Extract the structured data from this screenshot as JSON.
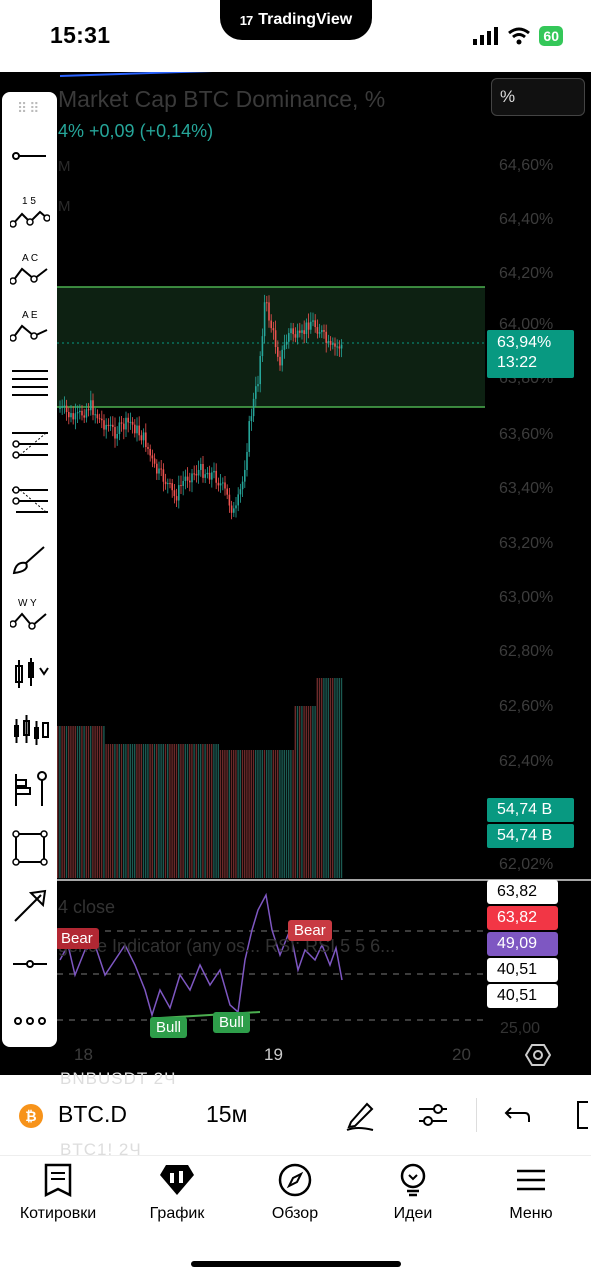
{
  "status_bar": {
    "time": "15:31",
    "battery": "60",
    "dynamic_island_app": "TradingView"
  },
  "chart": {
    "title": "Market Cap BTC Dominance, %",
    "change": "4%  +0,09 (+0,14%)",
    "sub1": "M",
    "sub2": "M",
    "scale_button": "%",
    "price_labels": [
      "64,60%",
      "64,40%",
      "64,20%",
      "64,00%",
      "63,80%",
      "63,60%",
      "63,40%",
      "63,20%",
      "63,00%",
      "62,80%",
      "62,60%",
      "62,40%",
      "62,02%"
    ],
    "current_price": "63,94%",
    "countdown": "13:22",
    "volume_tags": [
      "54,74 B",
      "54,74 B"
    ],
    "oscillator": {
      "title": "4 close",
      "title2": "gence Indicator (any os... RSI: RSI 5 5 6...",
      "tags": [
        {
          "value": "63,82",
          "color": "#ffffff"
        },
        {
          "value": "63,82",
          "color": "#f23645"
        },
        {
          "value": "49,09",
          "color": "#7e57c2"
        },
        {
          "value": "40,51",
          "color": "#ffffff"
        },
        {
          "value": "40,51",
          "color": "#ffffff"
        }
      ],
      "level": "25,00",
      "badges": {
        "bear1": "Bear",
        "bear2": "Bear",
        "bull1": "Bull",
        "bull2": "Bull"
      }
    },
    "date_labels": [
      "18",
      "19",
      "20"
    ],
    "colors": {
      "up": "#26a69a",
      "down": "#ef5350",
      "box_border": "#4caf50",
      "osc_line": "#7e57c2",
      "price_tag": "#089981"
    }
  },
  "toolbar": {
    "tools": [
      "trend-line-icon",
      "xabcd-pattern-icon",
      "abcd-pattern-icon",
      "elliott-wave-icon",
      "horizontal-lines-icon",
      "fib-retracement-icon",
      "fib-extension-icon",
      "brush-icon",
      "wave-pattern-icon",
      "long-position-icon",
      "candles-icon",
      "volume-profile-icon",
      "rectangle-icon",
      "arrow-icon",
      "horizontal-ray-icon",
      "more-icon"
    ],
    "labels": {
      "xabcd": "1 5",
      "abcd": "A C",
      "elliott": "A E",
      "wave": "W Y"
    }
  },
  "symbol_bar": {
    "symbol": "BTC.D",
    "interval": "15м",
    "btc_glyph": "₿",
    "ghost_above": "BNBUSDT    2Ч",
    "ghost_below": "BTC1!    2Ч"
  },
  "nav": {
    "items": [
      {
        "label": "Котировки",
        "icon": "watchlist-icon"
      },
      {
        "label": "График",
        "icon": "chart-icon"
      },
      {
        "label": "Обзор",
        "icon": "compass-icon"
      },
      {
        "label": "Идеи",
        "icon": "ideas-icon"
      },
      {
        "label": "Меню",
        "icon": "menu-icon"
      }
    ]
  }
}
